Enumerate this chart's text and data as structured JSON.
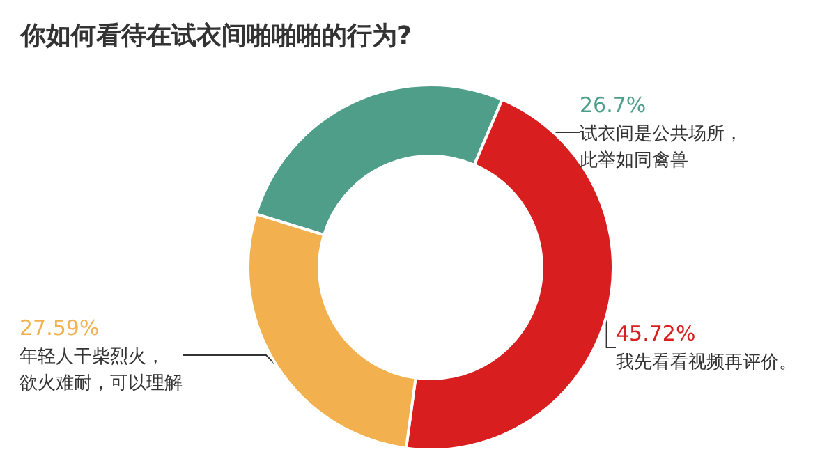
{
  "chart_data": {
    "type": "donut",
    "title": "你如何看待在试衣间啪啪啪的行为?",
    "categories": [
      "试衣间是公共场所，此举如同禽兽",
      "我先看看视频再评价。",
      "年轻人干柴烈火，欲火难耐，可以理解"
    ],
    "values": [
      26.7,
      45.72,
      27.59
    ],
    "value_labels": [
      "26.7%",
      "45.72%",
      "27.59%"
    ],
    "colors": [
      "#4e9e8a",
      "#d81e1e",
      "#f2b04f"
    ],
    "legend": false
  }
}
